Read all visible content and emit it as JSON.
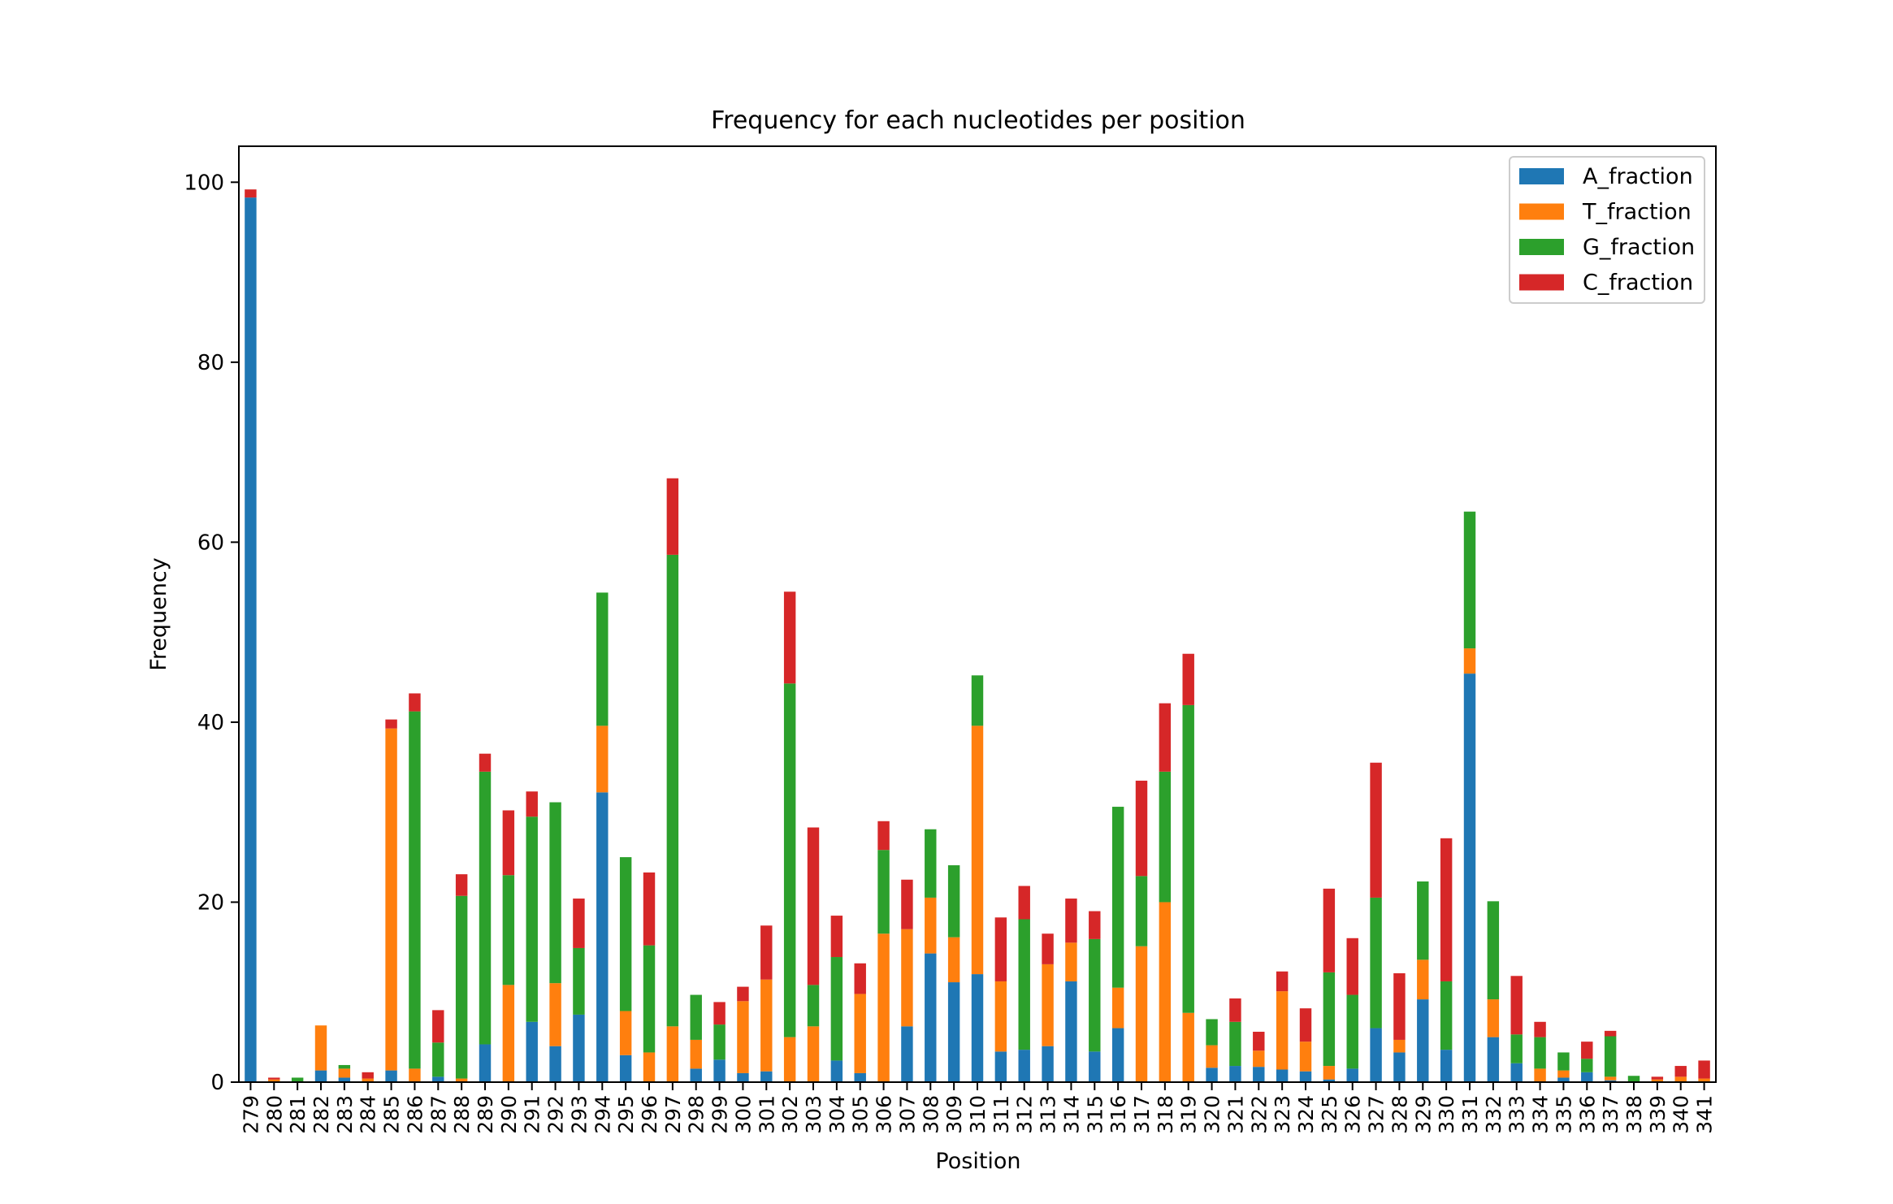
{
  "chart_data": {
    "type": "bar",
    "stacked": true,
    "title": "Frequency for each nucleotides per position",
    "xlabel": "Position",
    "ylabel": "Frequency",
    "ylim": [
      0,
      104
    ],
    "yticks": [
      0,
      20,
      40,
      60,
      80,
      100
    ],
    "legend_position": "top-right",
    "categories": [
      "279",
      "280",
      "281",
      "282",
      "283",
      "284",
      "285",
      "286",
      "287",
      "288",
      "289",
      "290",
      "291",
      "292",
      "293",
      "294",
      "295",
      "296",
      "297",
      "298",
      "299",
      "300",
      "301",
      "302",
      "303",
      "304",
      "305",
      "306",
      "307",
      "308",
      "309",
      "310",
      "311",
      "312",
      "313",
      "314",
      "315",
      "316",
      "317",
      "318",
      "319",
      "320",
      "321",
      "322",
      "323",
      "324",
      "325",
      "326",
      "327",
      "328",
      "329",
      "330",
      "331",
      "332",
      "333",
      "334",
      "335",
      "336",
      "337",
      "338",
      "339",
      "340",
      "341"
    ],
    "series": [
      {
        "name": "A_fraction",
        "color": "#1f77b4",
        "values": [
          98.3,
          0,
          0,
          1.3,
          0.5,
          0,
          1.3,
          0,
          0.6,
          0,
          4.2,
          0,
          6.7,
          4,
          7.5,
          32.2,
          3,
          0,
          0,
          1.5,
          2.5,
          1,
          1.2,
          0,
          0,
          2.4,
          1,
          0,
          6.2,
          14.3,
          11.1,
          12,
          3.4,
          3.6,
          4,
          11.2,
          3.4,
          6,
          0,
          0,
          0,
          1.6,
          1.8,
          1.7,
          1.4,
          1.2,
          0.3,
          1.5,
          6,
          3.3,
          9.2,
          3.6,
          45.4,
          5,
          2.1,
          0,
          0.5,
          1.1,
          0.2,
          0,
          0,
          0,
          0
        ]
      },
      {
        "name": "T_fraction",
        "color": "#ff7f0e",
        "values": [
          0,
          0.3,
          0,
          5,
          1,
          0.4,
          38,
          1.5,
          0,
          0.4,
          0,
          10.8,
          0,
          7,
          0,
          7.4,
          4.9,
          3.3,
          6.2,
          3.2,
          0,
          8,
          10.2,
          5,
          6.2,
          0,
          8.8,
          16.5,
          10.8,
          6.2,
          5,
          27.6,
          7.8,
          0,
          9.1,
          4.3,
          0,
          4.5,
          15.1,
          20,
          7.7,
          2.5,
          0,
          1.8,
          8.7,
          3.3,
          1.5,
          0,
          0,
          1.4,
          4.4,
          0,
          2.8,
          4.2,
          0,
          1.5,
          0.8,
          0,
          0.4,
          0,
          0.3,
          0.6,
          0.4
        ]
      },
      {
        "name": "G_fraction",
        "color": "#2ca02c",
        "values": [
          0,
          0,
          0.5,
          0,
          0.4,
          0,
          0,
          39.7,
          3.8,
          20.3,
          30.3,
          12.2,
          22.8,
          20.1,
          7.4,
          14.8,
          17.1,
          11.9,
          52.4,
          5,
          3.9,
          0,
          0,
          39.3,
          4.6,
          11.5,
          0,
          9.3,
          0,
          7.6,
          8,
          5.6,
          0,
          14.5,
          0,
          0,
          12.5,
          20.1,
          7.8,
          14.5,
          34.2,
          2.9,
          4.9,
          0,
          0,
          0,
          10.4,
          8.2,
          14.5,
          0,
          8.7,
          7.6,
          15.2,
          10.9,
          3.2,
          3.5,
          2,
          1.5,
          4.5,
          0.7,
          0,
          0,
          0
        ]
      },
      {
        "name": "C_fraction",
        "color": "#d62728",
        "values": [
          0.9,
          0.2,
          0,
          0,
          0,
          0.7,
          1,
          2,
          3.6,
          2.4,
          2,
          7.2,
          2.8,
          0,
          5.5,
          0,
          0,
          8.1,
          8.5,
          0,
          2.5,
          1.6,
          6,
          10.2,
          17.5,
          4.6,
          3.4,
          3.2,
          5.5,
          0,
          0,
          0,
          7.1,
          3.7,
          3.4,
          4.9,
          3.1,
          0,
          10.6,
          7.6,
          5.7,
          0,
          2.6,
          2.1,
          2.2,
          3.7,
          9.3,
          6.3,
          15,
          7.4,
          0,
          15.9,
          0,
          0,
          6.5,
          1.7,
          0,
          1.9,
          0.6,
          0,
          0.3,
          1.2,
          2
        ]
      }
    ]
  }
}
